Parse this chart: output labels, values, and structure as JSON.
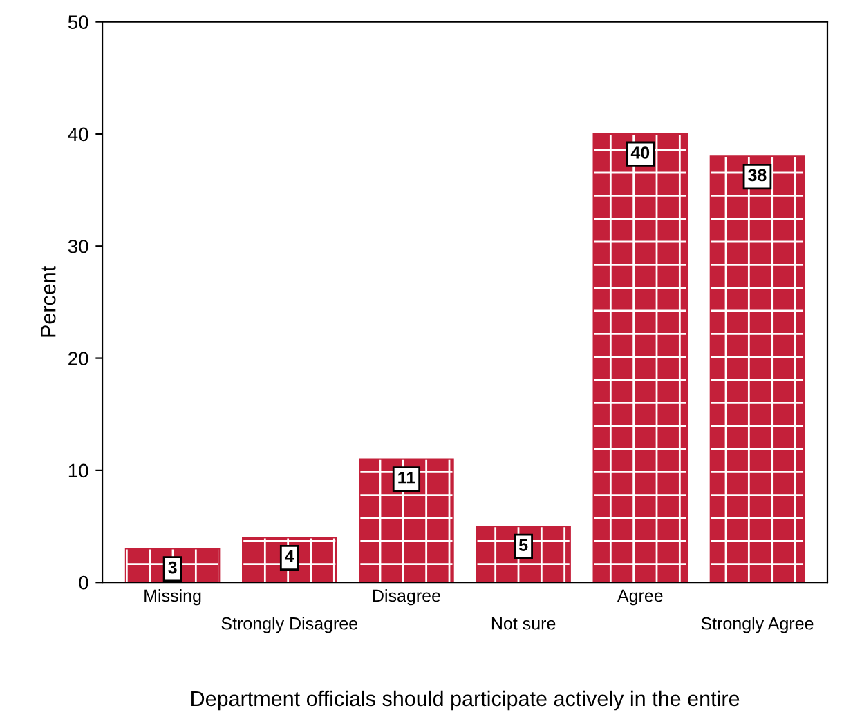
{
  "chart_data": {
    "type": "bar",
    "xlabel": "Department officials should participate actively in the entire",
    "ylabel": "Percent",
    "categories": [
      "Missing",
      "Strongly Disagree",
      "Disagree",
      "Not sure",
      "Agree",
      "Strongly Agree"
    ],
    "values": [
      3,
      4,
      11,
      5,
      40,
      38
    ],
    "color": "#c4203a",
    "data_labels": true,
    "ylim": [
      0,
      50
    ],
    "yticks": [
      0,
      10,
      20,
      30,
      40,
      50
    ],
    "grid": false,
    "legend": false
  }
}
